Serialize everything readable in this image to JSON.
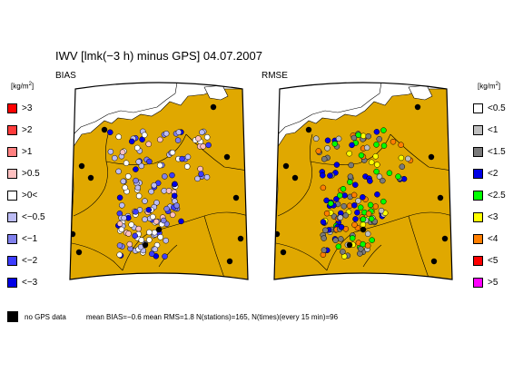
{
  "title": "IWV [lmk(−3 h) minus GPS] 04.07.2007",
  "panels": {
    "bias_label": "BIAS",
    "rmse_label": "RMSE"
  },
  "unit": {
    "base": "[kg/m",
    "sup": "2",
    "close": "]"
  },
  "bias_legend": [
    {
      "label": ">3",
      "color": "#ff0000"
    },
    {
      "label": ">2",
      "color": "#ff3b3b"
    },
    {
      "label": ">1",
      "color": "#ff8080"
    },
    {
      "label": ">0.5",
      "color": "#ffc0c0"
    },
    {
      "label": ">0<",
      "color": "#ffffff"
    },
    {
      "label": "<−0.5",
      "color": "#bcbcf4"
    },
    {
      "label": "<−1",
      "color": "#8080ec"
    },
    {
      "label": "<−2",
      "color": "#3c3cff"
    },
    {
      "label": "<−3",
      "color": "#0000e6"
    }
  ],
  "rmse_legend": [
    {
      "label": "<0.5",
      "color": "#ffffff"
    },
    {
      "label": "<1",
      "color": "#bebebe"
    },
    {
      "label": "<1.5",
      "color": "#7a7a7a"
    },
    {
      "label": "<2",
      "color": "#0000e6"
    },
    {
      "label": "<2.5",
      "color": "#00ff00"
    },
    {
      "label": "<3",
      "color": "#ffff00"
    },
    {
      "label": "<4",
      "color": "#ff7f00"
    },
    {
      "label": "<5",
      "color": "#ff0000"
    },
    {
      "label": ">5",
      "color": "#ff00ff"
    }
  ],
  "colors": {
    "land": "#e0a800",
    "water": "#ffffff",
    "no_gps": "#000000"
  },
  "footer": {
    "no_gps_label": "no GPS data",
    "stats": "mean BIAS=−0.6  mean RMS=1.8  N(stations)=165, N(times)(every 15 min)=96"
  }
}
